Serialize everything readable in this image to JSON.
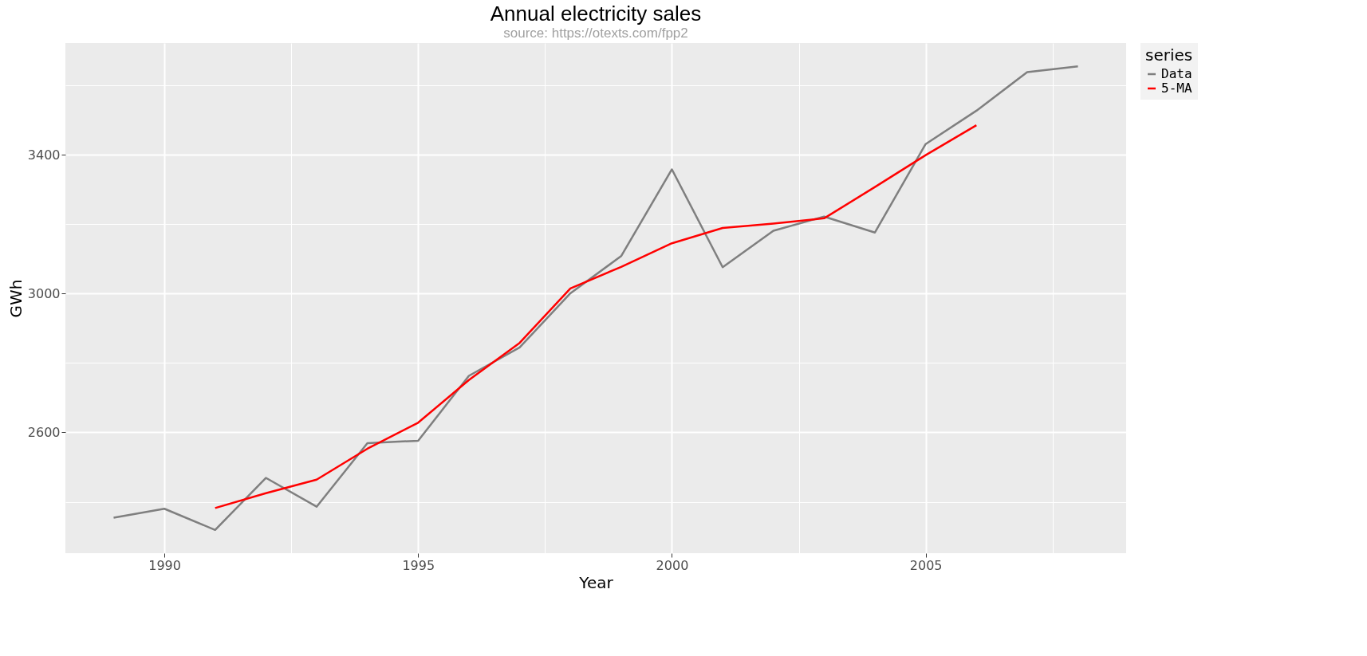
{
  "chart_data": {
    "type": "line",
    "title": "Annual electricity sales",
    "subtitle": "source: https://otexts.com/fpp2",
    "xlabel": "Year",
    "ylabel": "GWh",
    "legend_title": "series",
    "x": [
      1989,
      1990,
      1991,
      1992,
      1993,
      1994,
      1995,
      1996,
      1997,
      1998,
      1999,
      2000,
      2001,
      2002,
      2003,
      2004,
      2005,
      2006,
      2007,
      2008
    ],
    "series": [
      {
        "name": "Data",
        "color": "#7f7f7f",
        "values": [
          2354,
          2380,
          2319,
          2469,
          2386,
          2569,
          2576,
          2763,
          2845,
          3001,
          3108,
          3358,
          3076,
          3181,
          3222,
          3176,
          3431,
          3527,
          3638,
          3655
        ]
      },
      {
        "name": "5-MA",
        "color": "#ff0000",
        "values": [
          null,
          null,
          2382,
          2425,
          2464,
          2553,
          2628,
          2751,
          2858,
          3015,
          3077,
          3145,
          3189,
          3202,
          3217,
          3307,
          3399,
          3485,
          null,
          null
        ]
      }
    ],
    "xlim": [
      1988.05,
      2008.95
    ],
    "ylim": [
      2252,
      3722
    ],
    "xticks": [
      1990,
      {
        "value": 1992.5,
        "label": null
      },
      1995,
      {
        "value": 1997.5,
        "label": null
      },
      2000,
      {
        "value": 2002.5,
        "label": null
      },
      2005,
      {
        "value": 2007.5,
        "label": null
      }
    ],
    "yticks": [
      {
        "value": 2400,
        "label": null
      },
      2600,
      {
        "value": 2800,
        "label": null
      },
      3000,
      {
        "value": 3200,
        "label": null
      },
      3400,
      {
        "value": 3600,
        "label": null
      }
    ],
    "grid": true,
    "legend": "right",
    "line_style": "solid",
    "marker": "none"
  }
}
